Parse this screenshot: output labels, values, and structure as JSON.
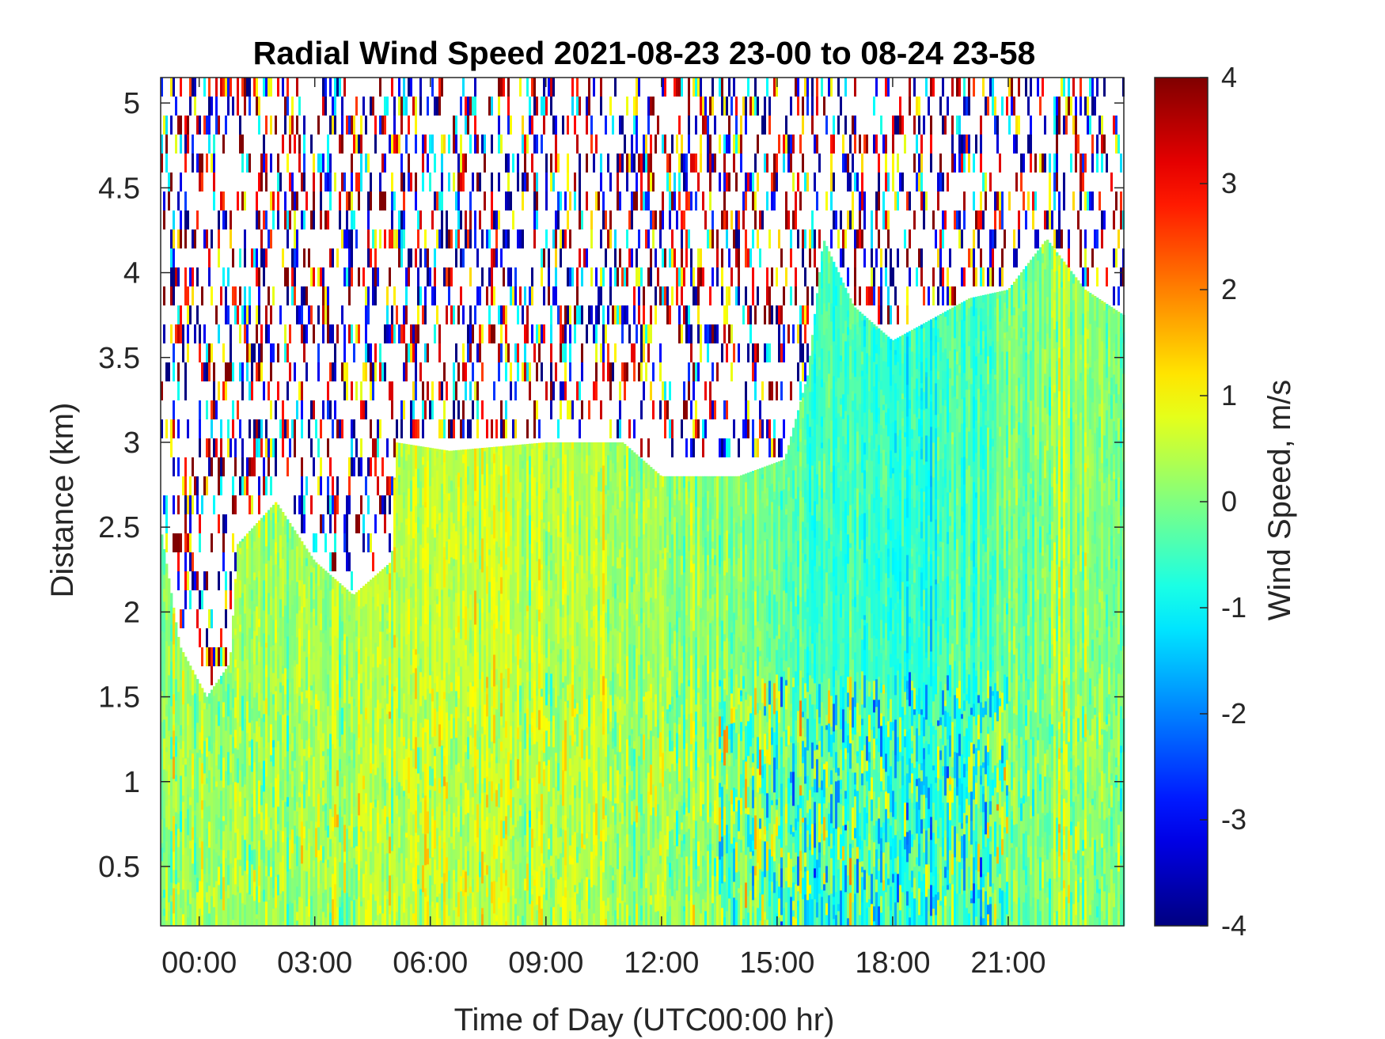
{
  "chart_data": {
    "type": "heatmap",
    "title": "Radial Wind Speed 2021-08-23 23-00 to 08-24 23-58",
    "xlabel": "Time of Day (UTC00:00 hr)",
    "ylabel": "Distance (km)",
    "colorbar_label": "Wind Speed, m/s",
    "colormap": "jet",
    "xlim_hours": [
      -1.0,
      24.0
    ],
    "ylim_km": [
      0.15,
      5.15
    ],
    "clim": [
      -4,
      4
    ],
    "x_ticks": [
      {
        "hour": 0,
        "label": "00:00"
      },
      {
        "hour": 3,
        "label": "03:00"
      },
      {
        "hour": 6,
        "label": "06:00"
      },
      {
        "hour": 9,
        "label": "09:00"
      },
      {
        "hour": 12,
        "label": "12:00"
      },
      {
        "hour": 15,
        "label": "15:00"
      },
      {
        "hour": 18,
        "label": "18:00"
      },
      {
        "hour": 21,
        "label": "21:00"
      }
    ],
    "y_ticks": [
      {
        "value": 0.5,
        "label": "0.5"
      },
      {
        "value": 1,
        "label": "1"
      },
      {
        "value": 1.5,
        "label": "1.5"
      },
      {
        "value": 2,
        "label": "2"
      },
      {
        "value": 2.5,
        "label": "2.5"
      },
      {
        "value": 3,
        "label": "3"
      },
      {
        "value": 3.5,
        "label": "3.5"
      },
      {
        "value": 4,
        "label": "4"
      },
      {
        "value": 4.5,
        "label": "4.5"
      },
      {
        "value": 5,
        "label": "5"
      }
    ],
    "colorbar_ticks": [
      {
        "value": 4,
        "label": "4"
      },
      {
        "value": 3,
        "label": "3"
      },
      {
        "value": 2,
        "label": "2"
      },
      {
        "value": 1,
        "label": "1"
      },
      {
        "value": 0,
        "label": "0"
      },
      {
        "value": -1,
        "label": "-1"
      },
      {
        "value": -2,
        "label": "-2"
      },
      {
        "value": -3,
        "label": "-3"
      },
      {
        "value": -4,
        "label": "-4"
      }
    ],
    "signal_top_km": [
      {
        "hour": -1.0,
        "km": 2.5
      },
      {
        "hour": -0.5,
        "km": 1.8
      },
      {
        "hour": 0.2,
        "km": 1.5
      },
      {
        "hour": 0.8,
        "km": 1.7
      },
      {
        "hour": 1.0,
        "km": 2.4
      },
      {
        "hour": 2.0,
        "km": 2.65
      },
      {
        "hour": 3.0,
        "km": 2.3
      },
      {
        "hour": 4.0,
        "km": 2.1
      },
      {
        "hour": 5.0,
        "km": 2.3
      },
      {
        "hour": 5.1,
        "km": 3.0
      },
      {
        "hour": 6.5,
        "km": 2.95
      },
      {
        "hour": 9.0,
        "km": 3.0
      },
      {
        "hour": 11.0,
        "km": 3.0
      },
      {
        "hour": 12.0,
        "km": 2.8
      },
      {
        "hour": 14.0,
        "km": 2.8
      },
      {
        "hour": 15.2,
        "km": 2.9
      },
      {
        "hour": 15.8,
        "km": 3.4
      },
      {
        "hour": 16.2,
        "km": 4.2
      },
      {
        "hour": 17.0,
        "km": 3.8
      },
      {
        "hour": 18.0,
        "km": 3.6
      },
      {
        "hour": 20.0,
        "km": 3.85
      },
      {
        "hour": 21.0,
        "km": 3.9
      },
      {
        "hour": 22.0,
        "km": 4.2
      },
      {
        "hour": 23.0,
        "km": 3.9
      },
      {
        "hour": 24.0,
        "km": 3.75
      }
    ],
    "speed_profile": [
      {
        "hour": -1.0,
        "speed": 0.2
      },
      {
        "hour": 2.0,
        "speed": 0.3
      },
      {
        "hour": 8.0,
        "speed": 0.6
      },
      {
        "hour": 12.0,
        "speed": 0.3
      },
      {
        "hour": 15.0,
        "speed": -0.2
      },
      {
        "hour": 16.5,
        "speed": -0.5
      },
      {
        "hour": 18.5,
        "speed": -0.8
      },
      {
        "hour": 20.0,
        "speed": -0.5
      },
      {
        "hour": 22.0,
        "speed": 0.2
      },
      {
        "hour": 24.0,
        "speed": 0.2
      }
    ]
  }
}
